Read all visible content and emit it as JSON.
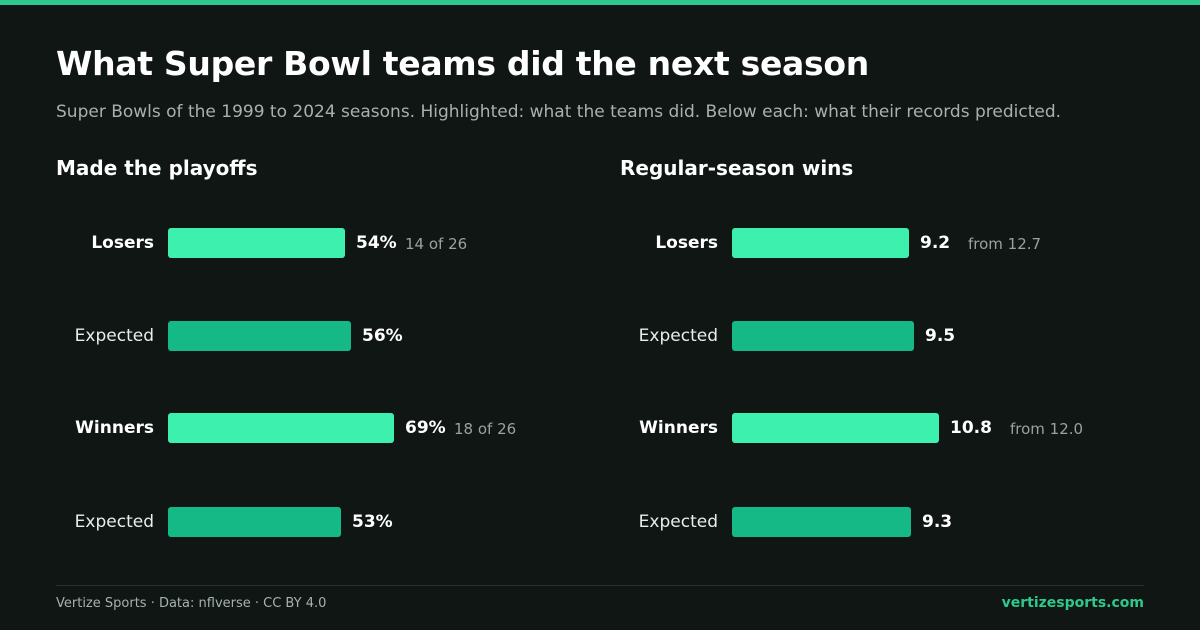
{
  "header": {
    "title": "What Super Bowl teams did the next season",
    "subtitle": "Super Bowls of the 1999 to 2024 seasons. Highlighted: what the teams did. Below each: what their records predicted."
  },
  "colors": {
    "background": "#0f1614",
    "accent": "#2ec98c",
    "actual_bar": "#3ef0ad",
    "expected_bar": "#14b985"
  },
  "chart_data": [
    {
      "type": "bar",
      "orientation": "horizontal",
      "title": "Made the playoffs",
      "unit": "%",
      "categories": [
        "Losers",
        "Expected",
        "Winners",
        "Expected"
      ],
      "values": [
        54,
        56,
        69,
        53
      ],
      "value_labels": [
        "54%",
        "56%",
        "69%",
        "53%"
      ],
      "highlighted": [
        true,
        false,
        true,
        false
      ],
      "notes": [
        "14 of 26",
        "",
        "18 of 26",
        ""
      ],
      "grid": false
    },
    {
      "type": "bar",
      "orientation": "horizontal",
      "title": "Regular-season wins",
      "categories": [
        "Losers",
        "Expected",
        "Winners",
        "Expected"
      ],
      "values": [
        9.2,
        9.5,
        10.8,
        9.3
      ],
      "value_labels": [
        "9.2",
        "9.5",
        "10.8",
        "9.3"
      ],
      "highlighted": [
        true,
        false,
        true,
        false
      ],
      "notes": [
        "from 12.7",
        "",
        "from 12.0",
        ""
      ],
      "grid": false
    }
  ],
  "footer": {
    "credit": "Vertize Sports · Data: nflverse · CC BY 4.0",
    "site": "vertizesports.com"
  }
}
